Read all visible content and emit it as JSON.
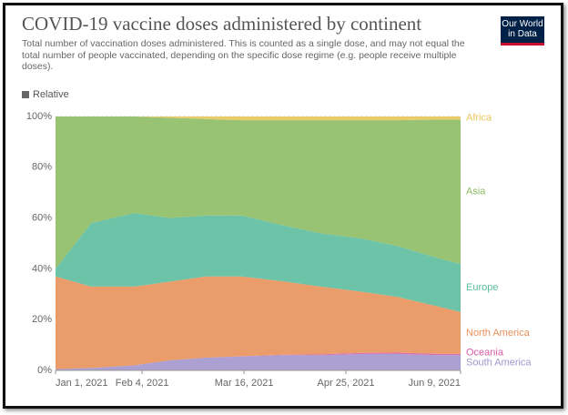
{
  "chart_data": {
    "type": "stacked_area",
    "title": "COVID-19 vaccine doses administered by continent",
    "subtitle": "Total number of vaccination doses administered. This is counted as a single dose, and may not equal the total number of people vaccinated, depending on the specific dose regime (e.g. people receive multiple doses).",
    "logo": "Our World in Data",
    "toggle": "Relative",
    "x": [
      "2021-01-01",
      "2021-01-15",
      "2021-02-01",
      "2021-02-15",
      "2021-03-01",
      "2021-03-15",
      "2021-04-01",
      "2021-04-15",
      "2021-05-01",
      "2021-05-15",
      "2021-06-01",
      "2021-06-09"
    ],
    "xlim": [
      "2021-01-01",
      "2021-06-09"
    ],
    "xticks": [
      {
        "value": "2021-01-01",
        "label": "Jan 1, 2021"
      },
      {
        "value": "2021-02-04",
        "label": "Feb 4, 2021"
      },
      {
        "value": "2021-03-16",
        "label": "Mar 16, 2021"
      },
      {
        "value": "2021-04-25",
        "label": "Apr 25, 2021"
      },
      {
        "value": "2021-06-09",
        "label": "Jun 9, 2021"
      }
    ],
    "ylim": [
      0,
      100
    ],
    "yticks": [
      {
        "value": 0,
        "label": "0%"
      },
      {
        "value": 20,
        "label": "20%"
      },
      {
        "value": 40,
        "label": "40%"
      },
      {
        "value": 60,
        "label": "60%"
      },
      {
        "value": 80,
        "label": "80%"
      },
      {
        "value": 100,
        "label": "100%"
      }
    ],
    "grid": true,
    "series": [
      {
        "name": "South America",
        "color": "#a395cc",
        "values": [
          0.5,
          1,
          2,
          4,
          5,
          5.5,
          6,
          6,
          6.5,
          6.5,
          6,
          6
        ]
      },
      {
        "name": "Oceania",
        "color": "#d65ca6",
        "values": [
          0,
          0,
          0,
          0,
          0,
          0.1,
          0.2,
          0.3,
          0.4,
          0.5,
          0.5,
          0.5
        ]
      },
      {
        "name": "North America",
        "color": "#e8925a",
        "values": [
          36.5,
          32,
          31,
          31,
          32,
          31.4,
          28.8,
          26.7,
          24.1,
          22,
          18.5,
          16.5
        ]
      },
      {
        "name": "Europe",
        "color": "#5dbd9e",
        "values": [
          3,
          25,
          29,
          25,
          24,
          24,
          22,
          21,
          21,
          20,
          19,
          19
        ]
      },
      {
        "name": "Asia",
        "color": "#8dbc63",
        "values": [
          60,
          42,
          38,
          39.5,
          38,
          37.5,
          41.5,
          44.5,
          46.5,
          49.5,
          54.8,
          56.8
        ]
      },
      {
        "name": "Africa",
        "color": "#e8c55a",
        "values": [
          0,
          0,
          0,
          0.5,
          1,
          1.5,
          1.5,
          1.5,
          1.5,
          1.5,
          1.2,
          1.2
        ]
      }
    ]
  }
}
